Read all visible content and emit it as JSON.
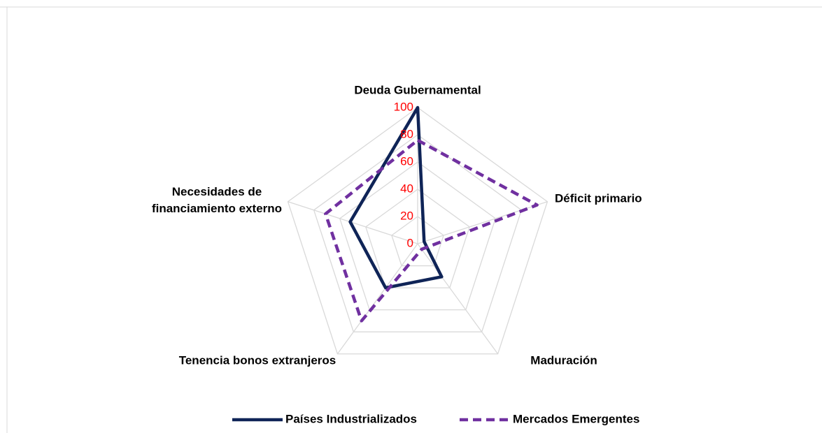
{
  "chart_data": {
    "type": "radar",
    "categories": [
      "Deuda Gubernamental",
      "Déficit primario",
      "Maduración",
      "Tenencia bonos extranjeros",
      [
        "Necesidades de",
        "financiamiento externo"
      ]
    ],
    "series": [
      {
        "name": "Países Industrializados",
        "color": "#0f2457",
        "dash": "solid",
        "values": [
          100,
          5,
          30,
          40,
          52
        ]
      },
      {
        "name": "Mercados Emergentes",
        "color": "#7030a0",
        "dash": "dashed",
        "values": [
          76,
          92,
          5,
          70,
          71
        ]
      }
    ],
    "ylim": [
      0,
      100
    ],
    "yticks": [
      0,
      20,
      40,
      60,
      80,
      100
    ],
    "grid": true
  }
}
